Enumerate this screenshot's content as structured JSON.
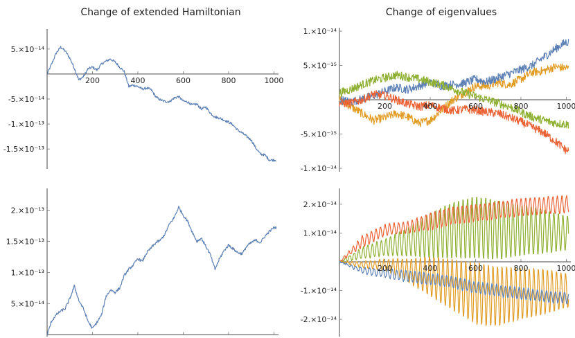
{
  "titles": {
    "left": "Change of extended Hamiltonian",
    "right": "Change of eigenvalues"
  },
  "colors": {
    "blue": "#5E81B5",
    "orange": "#E19C24",
    "green": "#8FB032",
    "red": "#EB6235"
  },
  "chart_data": [
    {
      "type": "line",
      "xlim": [
        0,
        1020
      ],
      "ylim": [
        -1.9e-13,
        9e-14
      ],
      "xticks": [
        200,
        400,
        600,
        800,
        1000
      ],
      "xtick_labels": [
        "200",
        "400",
        "600",
        "800",
        "1000"
      ],
      "yticks": [
        5e-14,
        -5e-14,
        -1e-13,
        -1.5e-13
      ],
      "ytick_labels": [
        "5.×10⁻¹⁴",
        "-5.×10⁻¹⁴",
        "-1.×10⁻¹³",
        "-1.5×10⁻¹³"
      ],
      "series": [
        {
          "color": "#5E81B5",
          "x": [
            0,
            20,
            40,
            60,
            80,
            100,
            120,
            140,
            160,
            180,
            200,
            220,
            240,
            260,
            280,
            300,
            320,
            340,
            360,
            380,
            400,
            420,
            440,
            460,
            480,
            500,
            520,
            540,
            560,
            580,
            600,
            620,
            640,
            660,
            680,
            700,
            720,
            740,
            760,
            780,
            800,
            820,
            840,
            860,
            880,
            900,
            920,
            940,
            960,
            980,
            1000
          ],
          "y": [
            0,
            2e-14,
            4.2e-14,
            5.4e-14,
            4.6e-14,
            3.2e-14,
            1.2e-14,
            -1.2e-14,
            -5e-15,
            1e-14,
            1.4e-14,
            8e-15,
            2e-14,
            2.6e-14,
            3e-14,
            2.4e-14,
            1.4e-14,
            5e-15,
            -2.5e-14,
            -2.2e-14,
            -2.5e-14,
            -3e-14,
            -2.8e-14,
            -3.2e-14,
            -4.6e-14,
            -5.2e-14,
            -5.5e-14,
            -5.5e-14,
            -4.8e-14,
            -4.5e-14,
            -5.4e-14,
            -5.6e-14,
            -6.2e-14,
            -6e-14,
            -7e-14,
            -6.6e-14,
            -7.8e-14,
            -8.6e-14,
            -8.8e-14,
            -9.2e-14,
            -9.6e-14,
            -1.02e-13,
            -1.12e-13,
            -1.18e-13,
            -1.25e-13,
            -1.32e-13,
            -1.48e-13,
            -1.6e-13,
            -1.62e-13,
            -1.72e-13,
            -1.72e-13
          ]
        }
      ]
    },
    {
      "type": "line",
      "xlim": [
        0,
        1020
      ],
      "ylim": [
        -1.05e-14,
        1.05e-14
      ],
      "xticks": [
        200,
        400,
        600,
        800,
        1000
      ],
      "xtick_labels": [
        "200",
        "400",
        "600",
        "800",
        "1000"
      ],
      "yticks": [
        1e-14,
        5e-15,
        -5e-15,
        -1e-14
      ],
      "ytick_labels": [
        "1.×10⁻¹⁴",
        "5.×10⁻¹⁵",
        "-5.×10⁻¹⁵",
        "-1.×10⁻¹⁴"
      ],
      "series": [
        {
          "color": "#E19C24",
          "x": [
            0,
            50,
            100,
            150,
            200,
            250,
            300,
            350,
            400,
            450,
            500,
            550,
            600,
            650,
            700,
            750,
            800,
            850,
            900,
            950,
            1000
          ],
          "y": [
            0,
            -1e-15,
            -2e-15,
            -3e-15,
            -2.6e-15,
            -2e-15,
            -2.5e-15,
            -3.4e-15,
            -3e-15,
            -1.5e-15,
            0,
            1e-15,
            2e-15,
            2e-15,
            2.5e-15,
            2.2e-15,
            3e-15,
            4e-15,
            4.2e-15,
            4.8e-15,
            4.6e-15
          ]
        },
        {
          "color": "#5E81B5",
          "x": [
            0,
            50,
            100,
            150,
            200,
            250,
            300,
            350,
            400,
            450,
            500,
            550,
            600,
            650,
            700,
            750,
            800,
            850,
            900,
            950,
            1000
          ],
          "y": [
            0,
            -3e-16,
            1e-16,
            6e-16,
            1.2e-15,
            1.8e-15,
            1.5e-15,
            2e-15,
            2.6e-15,
            2e-15,
            2.2e-15,
            2.4e-15,
            3e-15,
            2.6e-15,
            3.2e-15,
            3.8e-15,
            4.4e-15,
            5e-15,
            6.2e-15,
            7.4e-15,
            8.4e-15
          ]
        },
        {
          "color": "#8FB032",
          "x": [
            0,
            50,
            100,
            150,
            200,
            250,
            300,
            350,
            400,
            450,
            500,
            550,
            600,
            650,
            700,
            750,
            800,
            850,
            900,
            950,
            1000
          ],
          "y": [
            1e-15,
            1.5e-15,
            2.2e-15,
            2.8e-15,
            3.2e-15,
            3.6e-15,
            3.3e-15,
            3e-15,
            2.6e-15,
            2.2e-15,
            1.6e-15,
            1e-15,
            5e-16,
            0,
            -5e-16,
            -1e-15,
            -1.8e-15,
            -2.5e-15,
            -3e-15,
            -3.4e-15,
            -3.6e-15
          ]
        },
        {
          "color": "#EB6235",
          "x": [
            0,
            50,
            100,
            150,
            200,
            250,
            300,
            350,
            400,
            450,
            500,
            550,
            600,
            650,
            700,
            750,
            800,
            850,
            900,
            950,
            1000
          ],
          "y": [
            -5e-16,
            -5e-16,
            0,
            8e-16,
            6e-16,
            0,
            -6e-16,
            -1e-15,
            -8e-16,
            -1.2e-15,
            -1.6e-15,
            -1.4e-15,
            -1.5e-15,
            -1.8e-15,
            -2e-15,
            -2.6e-15,
            -3.2e-15,
            -4e-15,
            -4.8e-15,
            -6e-15,
            -7.4e-15
          ]
        }
      ]
    },
    {
      "type": "line",
      "xlim": [
        0,
        1020
      ],
      "ylim": [
        -3e-15,
        2.35e-13
      ],
      "xticks": [
        200,
        400,
        600,
        800,
        1000
      ],
      "xtick_labels": [
        "200",
        "400",
        "600",
        "800",
        "1000"
      ],
      "yticks": [
        2e-13,
        1.5e-13,
        1e-13,
        5e-14
      ],
      "ytick_labels": [
        "2.×10⁻¹³",
        "1.5×10⁻¹³",
        "1.×10⁻¹³",
        "5.×10⁻¹⁴"
      ],
      "series": [
        {
          "color": "#5E81B5",
          "x": [
            0,
            20,
            40,
            60,
            80,
            100,
            120,
            140,
            160,
            180,
            200,
            220,
            240,
            260,
            280,
            300,
            320,
            340,
            360,
            380,
            400,
            420,
            440,
            460,
            480,
            500,
            520,
            540,
            560,
            580,
            600,
            620,
            640,
            660,
            680,
            700,
            720,
            740,
            760,
            780,
            800,
            820,
            840,
            860,
            880,
            900,
            920,
            940,
            960,
            980,
            1000
          ],
          "y": [
            0,
            2.2e-14,
            3.2e-14,
            3.8e-14,
            4.2e-14,
            5.8e-14,
            7.8e-14,
            5.5e-14,
            4.2e-14,
            2.2e-14,
            1e-14,
            2e-14,
            3.2e-14,
            6.2e-14,
            7.2e-14,
            6.8e-14,
            7.5e-14,
            9.5e-14,
            1.05e-13,
            1.12e-13,
            1.22e-13,
            1.18e-13,
            1.32e-13,
            1.4e-13,
            1.48e-13,
            1.52e-13,
            1.62e-13,
            1.78e-13,
            1.88e-13,
            2.05e-13,
            1.92e-13,
            1.82e-13,
            1.65e-13,
            1.5e-13,
            1.55e-13,
            1.42e-13,
            1.28e-13,
            1.05e-13,
            1.22e-13,
            1.35e-13,
            1.44e-13,
            1.38e-13,
            1.32e-13,
            1.3e-13,
            1.42e-13,
            1.48e-13,
            1.52e-13,
            1.48e-13,
            1.58e-13,
            1.66e-13,
            1.72e-13
          ]
        }
      ]
    },
    {
      "type": "line",
      "xlim": [
        0,
        1020
      ],
      "ylim": [
        -2.6e-14,
        2.55e-14
      ],
      "xticks": [
        200,
        400,
        600,
        800,
        1000
      ],
      "xtick_labels": [
        "200",
        "400",
        "600",
        "800",
        "1000"
      ],
      "yticks": [
        2e-14,
        1e-14,
        -1e-14,
        -2e-14
      ],
      "ytick_labels": [
        "2.×10⁻¹⁴",
        "1.×10⁻¹⁴",
        "-1.×10⁻¹⁴",
        "-2.×10⁻¹⁴"
      ],
      "oscillation_period": 20,
      "series": [
        {
          "color": "#8FB032",
          "x": [
            0,
            100,
            200,
            300,
            400,
            500,
            600,
            700,
            800,
            900,
            1000
          ],
          "y": [
            0,
            3e-15,
            5e-15,
            7e-15,
            9e-15,
            1.1e-14,
            1.2e-14,
            1.1e-14,
            1.1e-14,
            1.05e-14,
            1e-14
          ],
          "amplitude": [
            0,
            2e-15,
            3e-15,
            5e-15,
            8e-15,
            1e-14,
            1.1e-14,
            1.05e-14,
            9e-15,
            8e-15,
            6e-15
          ]
        },
        {
          "color": "#EB6235",
          "x": [
            0,
            100,
            200,
            300,
            400,
            500,
            600,
            700,
            800,
            900,
            1000
          ],
          "y": [
            0,
            7e-15,
            1.1e-14,
            1.2e-14,
            1.4e-14,
            1.6e-14,
            1.7e-14,
            1.8e-14,
            1.9e-14,
            1.95e-14,
            2e-14
          ],
          "amplitude": [
            0,
            2e-15,
            2e-15,
            2e-15,
            3e-15,
            3e-15,
            3e-15,
            3e-15,
            3e-15,
            3e-15,
            3e-15
          ]
        },
        {
          "color": "#E19C24",
          "x": [
            0,
            100,
            200,
            300,
            400,
            500,
            600,
            700,
            800,
            900,
            1000
          ],
          "y": [
            0,
            -1e-15,
            -1e-15,
            -3e-15,
            -5e-15,
            -8e-15,
            -1.1e-14,
            -1.2e-14,
            -1.1e-14,
            -1.05e-14,
            -1e-14
          ],
          "amplitude": [
            0,
            1e-15,
            2e-15,
            4e-15,
            7e-15,
            9e-15,
            1.1e-14,
            1.05e-14,
            9e-15,
            8e-15,
            6e-15
          ]
        },
        {
          "color": "#5E81B5",
          "x": [
            0,
            100,
            200,
            300,
            400,
            500,
            600,
            700,
            800,
            900,
            1000
          ],
          "y": [
            0,
            -3e-15,
            -4e-15,
            -5e-15,
            -6e-15,
            -7e-15,
            -9e-15,
            -1e-14,
            -1.1e-14,
            -1.2e-14,
            -1.25e-14
          ],
          "amplitude": [
            0,
            1e-15,
            1.5e-15,
            2e-15,
            2e-15,
            2e-15,
            2e-15,
            2e-15,
            2e-15,
            2e-15,
            2e-15
          ]
        }
      ]
    }
  ]
}
